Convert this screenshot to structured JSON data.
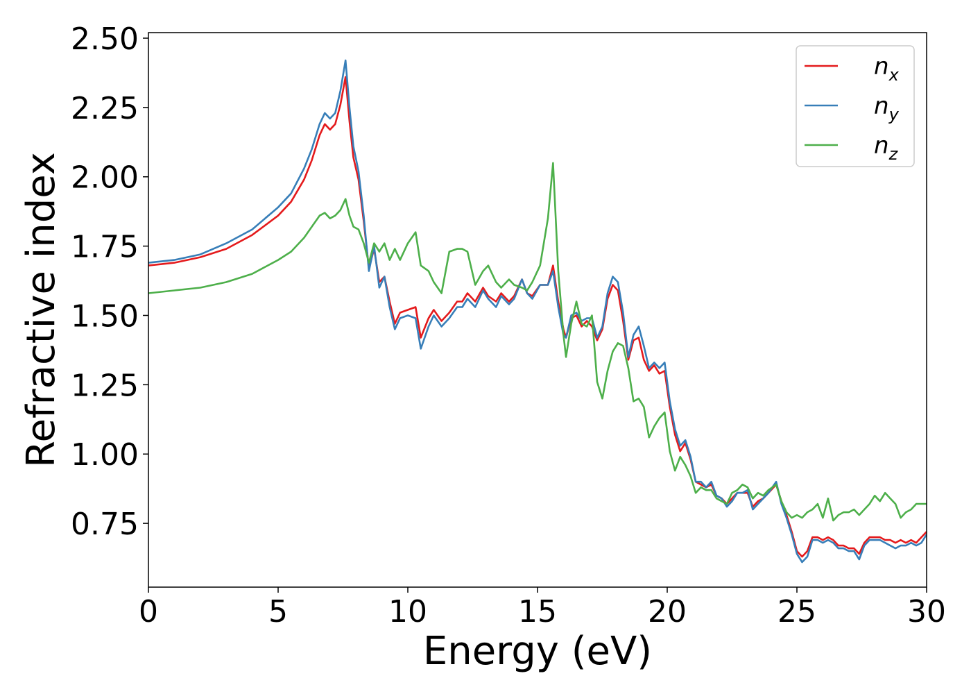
{
  "chart_data": {
    "type": "line",
    "xlabel": "Energy (eV)",
    "ylabel": "Refractive index",
    "xlim": [
      0,
      30
    ],
    "ylim": [
      0.52,
      2.52
    ],
    "xticks": [
      0,
      5,
      10,
      15,
      20,
      25,
      30
    ],
    "xtick_labels": [
      "0",
      "5",
      "10",
      "15",
      "20",
      "25",
      "30"
    ],
    "yticks": [
      0.75,
      1.0,
      1.25,
      1.5,
      1.75,
      2.0,
      2.25,
      2.5
    ],
    "ytick_labels": [
      "0.75",
      "1.00",
      "1.25",
      "1.50",
      "1.75",
      "2.00",
      "2.25",
      "2.50"
    ],
    "grid": false,
    "legend_position": "top-right",
    "series": [
      {
        "name": "n",
        "subscript": "x",
        "color": "#e41a1c",
        "x": [
          0,
          1,
          2,
          3,
          4,
          5,
          5.5,
          6,
          6.3,
          6.6,
          6.8,
          7.0,
          7.2,
          7.4,
          7.6,
          7.75,
          7.9,
          8.1,
          8.3,
          8.5,
          8.7,
          8.9,
          9.1,
          9.3,
          9.5,
          9.7,
          10.0,
          10.3,
          10.5,
          10.8,
          11.0,
          11.3,
          11.6,
          11.9,
          12.1,
          12.3,
          12.6,
          12.9,
          13.1,
          13.4,
          13.6,
          13.9,
          14.1,
          14.4,
          14.6,
          14.8,
          15.1,
          15.4,
          15.6,
          15.8,
          16.0,
          16.1,
          16.3,
          16.5,
          16.7,
          16.9,
          17.1,
          17.3,
          17.5,
          17.7,
          17.9,
          18.1,
          18.3,
          18.5,
          18.7,
          18.9,
          19.1,
          19.3,
          19.5,
          19.7,
          19.9,
          20.1,
          20.3,
          20.5,
          20.7,
          20.9,
          21.1,
          21.3,
          21.5,
          21.7,
          21.9,
          22.1,
          22.3,
          22.5,
          22.7,
          22.9,
          23.1,
          23.3,
          23.5,
          23.7,
          23.9,
          24.2,
          24.4,
          24.6,
          24.8,
          25.0,
          25.2,
          25.4,
          25.6,
          25.8,
          26.0,
          26.2,
          26.4,
          26.6,
          26.8,
          27.0,
          27.2,
          27.4,
          27.6,
          27.8,
          28.0,
          28.2,
          28.4,
          28.6,
          28.8,
          29.0,
          29.2,
          29.4,
          29.6,
          29.8,
          30.0
        ],
        "y": [
          1.68,
          1.69,
          1.71,
          1.74,
          1.79,
          1.86,
          1.91,
          1.99,
          2.06,
          2.15,
          2.19,
          2.17,
          2.19,
          2.26,
          2.36,
          2.2,
          2.07,
          1.99,
          1.84,
          1.67,
          1.74,
          1.62,
          1.64,
          1.55,
          1.47,
          1.51,
          1.52,
          1.53,
          1.42,
          1.49,
          1.52,
          1.48,
          1.51,
          1.55,
          1.55,
          1.58,
          1.55,
          1.6,
          1.57,
          1.55,
          1.58,
          1.55,
          1.57,
          1.63,
          1.58,
          1.57,
          1.61,
          1.61,
          1.68,
          1.55,
          1.45,
          1.42,
          1.49,
          1.5,
          1.46,
          1.48,
          1.46,
          1.41,
          1.45,
          1.56,
          1.61,
          1.59,
          1.48,
          1.34,
          1.41,
          1.42,
          1.34,
          1.3,
          1.32,
          1.29,
          1.3,
          1.17,
          1.07,
          1.01,
          1.04,
          0.98,
          0.9,
          0.89,
          0.88,
          0.89,
          0.85,
          0.84,
          0.82,
          0.84,
          0.86,
          0.86,
          0.86,
          0.81,
          0.83,
          0.84,
          0.86,
          0.89,
          0.83,
          0.78,
          0.72,
          0.65,
          0.63,
          0.65,
          0.7,
          0.7,
          0.69,
          0.7,
          0.69,
          0.67,
          0.67,
          0.66,
          0.66,
          0.64,
          0.68,
          0.7,
          0.7,
          0.7,
          0.69,
          0.69,
          0.68,
          0.69,
          0.68,
          0.69,
          0.68,
          0.7,
          0.72
        ]
      },
      {
        "name": "n",
        "subscript": "y",
        "color": "#377eb8",
        "x": [
          0,
          1,
          2,
          3,
          4,
          5,
          5.5,
          6,
          6.3,
          6.6,
          6.8,
          7.0,
          7.2,
          7.4,
          7.6,
          7.75,
          7.9,
          8.1,
          8.3,
          8.5,
          8.7,
          8.9,
          9.1,
          9.3,
          9.5,
          9.7,
          10.0,
          10.3,
          10.5,
          10.8,
          11.0,
          11.3,
          11.6,
          11.9,
          12.1,
          12.3,
          12.6,
          12.9,
          13.1,
          13.4,
          13.6,
          13.9,
          14.1,
          14.4,
          14.6,
          14.8,
          15.1,
          15.4,
          15.6,
          15.8,
          16.0,
          16.1,
          16.3,
          16.5,
          16.7,
          16.9,
          17.1,
          17.3,
          17.5,
          17.7,
          17.9,
          18.1,
          18.3,
          18.5,
          18.7,
          18.9,
          19.1,
          19.3,
          19.5,
          19.7,
          19.9,
          20.1,
          20.3,
          20.5,
          20.7,
          20.9,
          21.1,
          21.3,
          21.5,
          21.7,
          21.9,
          22.1,
          22.3,
          22.5,
          22.7,
          22.9,
          23.1,
          23.3,
          23.5,
          23.7,
          23.9,
          24.2,
          24.4,
          24.6,
          24.8,
          25.0,
          25.2,
          25.4,
          25.6,
          25.8,
          26.0,
          26.2,
          26.4,
          26.6,
          26.8,
          27.0,
          27.2,
          27.4,
          27.6,
          27.8,
          28.0,
          28.2,
          28.4,
          28.6,
          28.8,
          29.0,
          29.2,
          29.4,
          29.6,
          29.8,
          30.0
        ],
        "y": [
          1.69,
          1.7,
          1.72,
          1.76,
          1.81,
          1.89,
          1.94,
          2.03,
          2.1,
          2.19,
          2.23,
          2.21,
          2.23,
          2.31,
          2.42,
          2.25,
          2.11,
          2.02,
          1.86,
          1.66,
          1.75,
          1.6,
          1.64,
          1.53,
          1.45,
          1.49,
          1.5,
          1.49,
          1.38,
          1.46,
          1.5,
          1.46,
          1.49,
          1.53,
          1.53,
          1.56,
          1.53,
          1.59,
          1.56,
          1.53,
          1.57,
          1.54,
          1.56,
          1.63,
          1.58,
          1.56,
          1.61,
          1.61,
          1.66,
          1.53,
          1.43,
          1.42,
          1.5,
          1.51,
          1.48,
          1.49,
          1.49,
          1.42,
          1.46,
          1.58,
          1.64,
          1.62,
          1.51,
          1.35,
          1.43,
          1.46,
          1.39,
          1.31,
          1.33,
          1.31,
          1.33,
          1.19,
          1.09,
          1.03,
          1.05,
          0.99,
          0.9,
          0.9,
          0.88,
          0.9,
          0.85,
          0.84,
          0.81,
          0.83,
          0.86,
          0.86,
          0.87,
          0.8,
          0.82,
          0.84,
          0.86,
          0.9,
          0.82,
          0.77,
          0.71,
          0.64,
          0.61,
          0.63,
          0.69,
          0.69,
          0.68,
          0.69,
          0.68,
          0.66,
          0.66,
          0.65,
          0.65,
          0.62,
          0.67,
          0.69,
          0.69,
          0.69,
          0.68,
          0.67,
          0.66,
          0.67,
          0.67,
          0.68,
          0.67,
          0.68,
          0.71
        ]
      },
      {
        "name": "n",
        "subscript": "z",
        "color": "#4daf4a",
        "x": [
          0,
          1,
          2,
          3,
          4,
          5,
          5.5,
          6,
          6.3,
          6.6,
          6.8,
          7.0,
          7.2,
          7.4,
          7.6,
          7.75,
          7.9,
          8.1,
          8.3,
          8.5,
          8.7,
          8.9,
          9.1,
          9.3,
          9.5,
          9.7,
          10.0,
          10.3,
          10.5,
          10.8,
          11.0,
          11.3,
          11.6,
          11.9,
          12.1,
          12.3,
          12.6,
          12.9,
          13.1,
          13.4,
          13.6,
          13.9,
          14.1,
          14.4,
          14.6,
          14.8,
          15.1,
          15.4,
          15.6,
          15.8,
          16.0,
          16.1,
          16.3,
          16.5,
          16.7,
          16.9,
          17.1,
          17.3,
          17.5,
          17.7,
          17.9,
          18.1,
          18.3,
          18.5,
          18.7,
          18.9,
          19.1,
          19.3,
          19.5,
          19.7,
          19.9,
          20.1,
          20.3,
          20.5,
          20.7,
          20.9,
          21.1,
          21.3,
          21.5,
          21.7,
          21.9,
          22.1,
          22.3,
          22.5,
          22.7,
          22.9,
          23.1,
          23.3,
          23.5,
          23.7,
          23.9,
          24.2,
          24.4,
          24.6,
          24.8,
          25.0,
          25.2,
          25.4,
          25.6,
          25.8,
          26.0,
          26.2,
          26.4,
          26.6,
          26.8,
          27.0,
          27.2,
          27.4,
          27.6,
          27.8,
          28.0,
          28.2,
          28.4,
          28.6,
          28.8,
          29.0,
          29.2,
          29.4,
          29.6,
          29.8,
          30.0
        ],
        "y": [
          1.58,
          1.59,
          1.6,
          1.62,
          1.65,
          1.7,
          1.73,
          1.78,
          1.82,
          1.86,
          1.87,
          1.85,
          1.86,
          1.88,
          1.92,
          1.86,
          1.82,
          1.81,
          1.76,
          1.69,
          1.76,
          1.73,
          1.76,
          1.7,
          1.74,
          1.7,
          1.76,
          1.8,
          1.68,
          1.66,
          1.62,
          1.58,
          1.73,
          1.74,
          1.74,
          1.73,
          1.61,
          1.66,
          1.68,
          1.62,
          1.6,
          1.63,
          1.61,
          1.6,
          1.59,
          1.62,
          1.68,
          1.85,
          2.05,
          1.66,
          1.43,
          1.35,
          1.47,
          1.55,
          1.47,
          1.46,
          1.5,
          1.26,
          1.2,
          1.3,
          1.37,
          1.4,
          1.39,
          1.31,
          1.19,
          1.2,
          1.17,
          1.06,
          1.1,
          1.13,
          1.15,
          1.01,
          0.94,
          0.99,
          0.96,
          0.92,
          0.86,
          0.88,
          0.87,
          0.87,
          0.84,
          0.83,
          0.82,
          0.86,
          0.87,
          0.89,
          0.88,
          0.84,
          0.86,
          0.85,
          0.87,
          0.89,
          0.83,
          0.79,
          0.77,
          0.78,
          0.77,
          0.79,
          0.8,
          0.82,
          0.77,
          0.84,
          0.76,
          0.78,
          0.79,
          0.79,
          0.8,
          0.78,
          0.8,
          0.82,
          0.85,
          0.83,
          0.86,
          0.84,
          0.82,
          0.77,
          0.79,
          0.8,
          0.82,
          0.82,
          0.82
        ]
      }
    ]
  }
}
